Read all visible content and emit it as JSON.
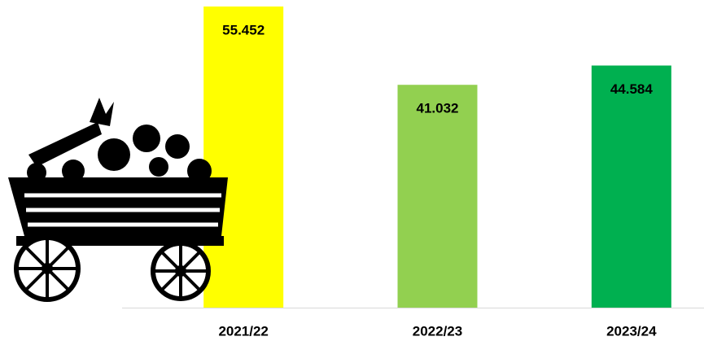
{
  "chart_data": {
    "type": "bar",
    "categories": [
      "2021/22",
      "2022/23",
      "2023/24"
    ],
    "values": [
      55.452,
      41.032,
      44.584
    ],
    "colors": [
      "#ffff00",
      "#92d050",
      "#00b050"
    ]
  }
}
